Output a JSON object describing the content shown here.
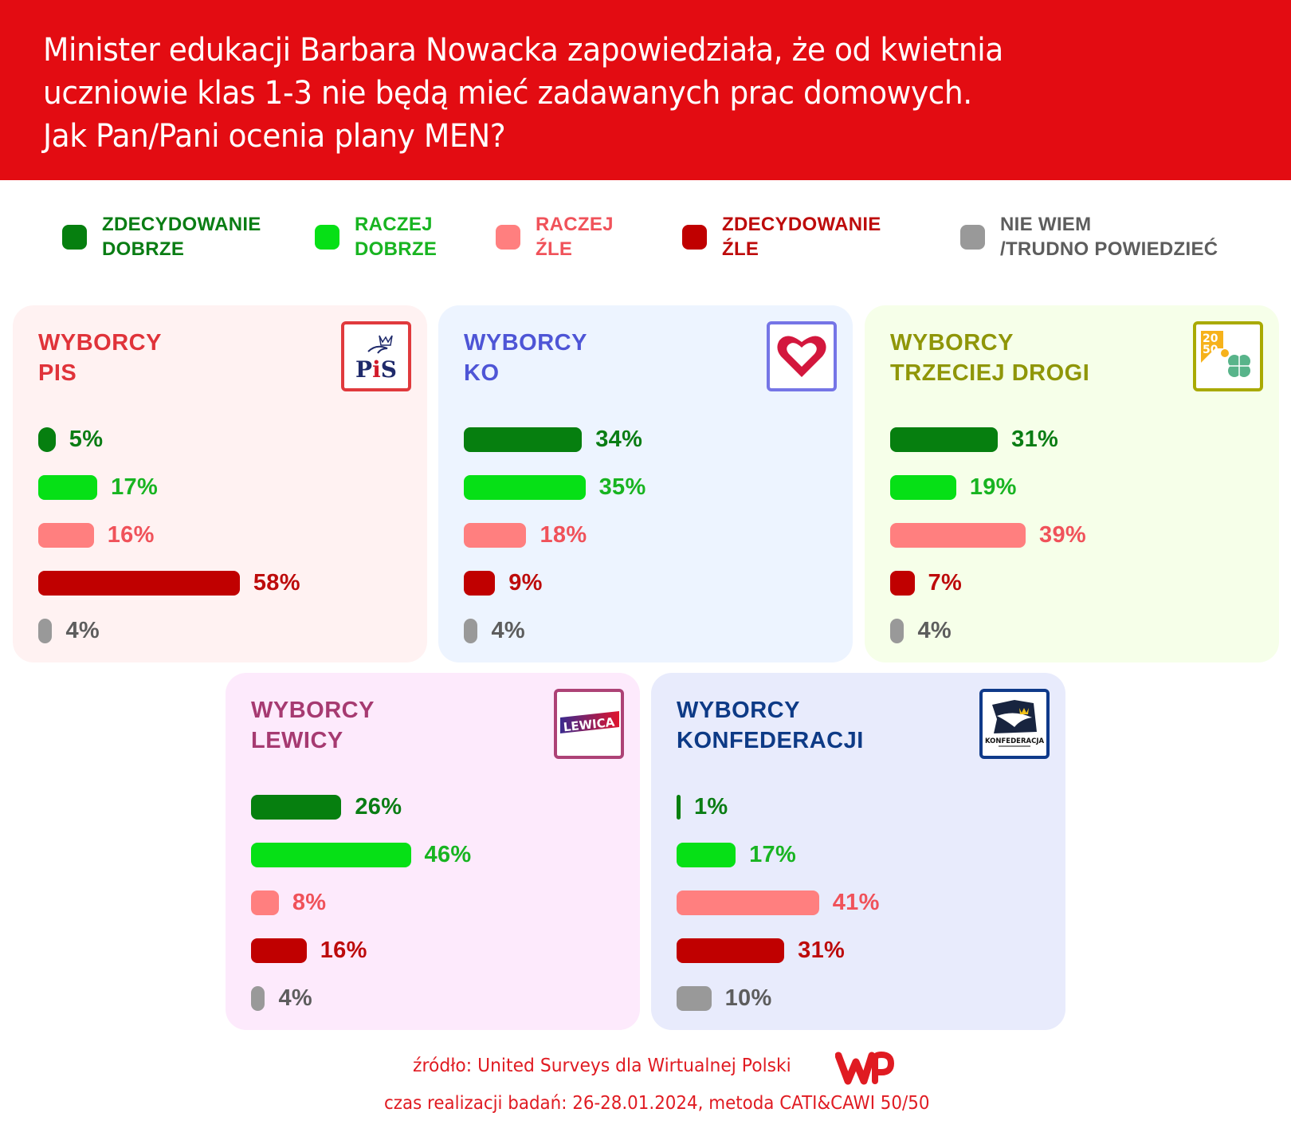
{
  "header": {
    "title_lines": [
      "Minister edukacji Barbara Nowacka zapowiedziała, że od kwietnia",
      "uczniowie klas 1-3 nie będą mieć zadawanych prac domowych.",
      "Jak Pan/Pani ocenia plany MEN?"
    ],
    "background": "#e30c12"
  },
  "legend": [
    {
      "line1": "ZDECYDOWANIE",
      "line2": "DOBRZE",
      "color": "#067f0f",
      "text_color": "#0a7d14"
    },
    {
      "line1": "RACZEJ",
      "line2": "DOBRZE",
      "color": "#06e016",
      "text_color": "#18b421"
    },
    {
      "line1": "RACZEJ",
      "line2": "ŹLE",
      "color": "#ff7f7f",
      "text_color": "#f0525a"
    },
    {
      "line1": "ZDECYDOWANIE",
      "line2": "ŹLE",
      "color": "#c00000",
      "text_color": "#bd0b0b"
    },
    {
      "line1": "NIE WIEM",
      "line2": "/TRUDNO POWIEDZIEĆ",
      "color": "#999999",
      "text_color": "#5d5d5d"
    }
  ],
  "chart_data": {
    "type": "bar",
    "orientation": "horizontal",
    "title": "Jak Pan/Pani ocenia plany MEN?",
    "unit": "%",
    "categories": [
      "ZDECYDOWANIE DOBRZE",
      "RACZEJ DOBRZE",
      "RACZEJ ŹLE",
      "ZDECYDOWANIE ŹLE",
      "NIE WIEM /TRUDNO POWIEDZIEĆ"
    ],
    "groups": [
      {
        "name_line1": "WYBORCY",
        "name_line2": "PIS",
        "logo": "pis-logo",
        "title_color": "#e0333a",
        "bg": "#fff2f2",
        "logo_border": "#e03a3d",
        "values": [
          5,
          17,
          16,
          58,
          4
        ]
      },
      {
        "name_line1": "WYBORCY",
        "name_line2": "KO",
        "logo": "ko-heart-logo",
        "title_color": "#4e55d6",
        "bg": "#edf4ff",
        "logo_border": "#7575e6",
        "values": [
          34,
          35,
          18,
          9,
          4
        ]
      },
      {
        "name_line1": "WYBORCY",
        "name_line2": "TRZECIEJ DROGI",
        "logo": "trzecia-droga-logo",
        "title_color": "#8f9608",
        "bg": "#f6ffe9",
        "logo_border": "#a9aa00",
        "values": [
          31,
          19,
          39,
          7,
          4
        ]
      },
      {
        "name_line1": "WYBORCY",
        "name_line2": "LEWICY",
        "logo": "lewica-logo",
        "title_color": "#a63a71",
        "bg": "#fdeafc",
        "logo_border": "#ad4276",
        "values": [
          26,
          46,
          8,
          16,
          4
        ]
      },
      {
        "name_line1": "WYBORCY",
        "name_line2": "KONFEDERACJI",
        "logo": "konfederacja-logo",
        "title_color": "#0d3a86",
        "bg": "#e8ebfc",
        "logo_border": "#0f3a8a",
        "values": [
          1,
          17,
          41,
          31,
          10
        ]
      }
    ]
  },
  "logos": {
    "pis_text": "PiS",
    "trzecia_droga_text": "2050",
    "lewica_text": "LEWICA",
    "konfederacja_text": "KONFEDERACJA",
    "wp_text": "WP"
  },
  "footer": {
    "source": "źródło: United Surveys dla Wirtualnej Polski",
    "fieldwork": "czas realizacji badań: 26-28.01.2024, metoda CATI&CAWI 50/50"
  }
}
